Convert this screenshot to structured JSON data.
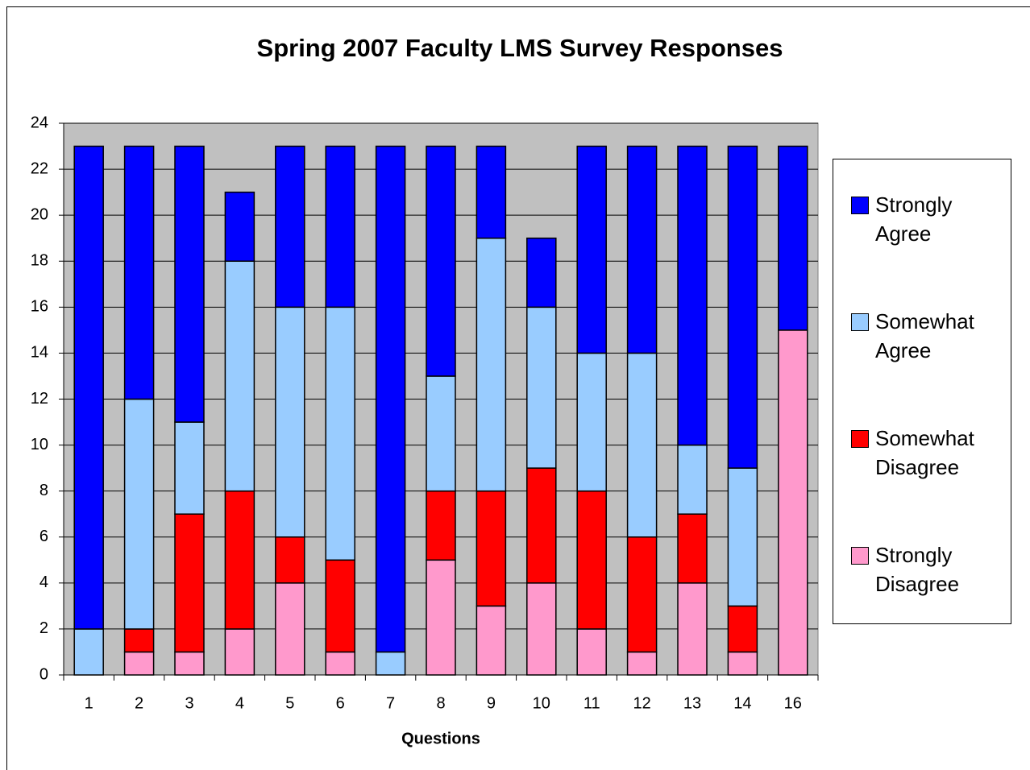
{
  "chart_data": {
    "type": "stacked_bar",
    "title": "Spring 2007 Faculty LMS Survey Responses",
    "x_label": "Questions",
    "categories": [
      "1",
      "2",
      "3",
      "4",
      "5",
      "6",
      "7",
      "8",
      "9",
      "10",
      "11",
      "12",
      "13",
      "14",
      "16"
    ],
    "series": [
      {
        "name": "Strongly Disagree",
        "color": "#ff99cc",
        "values": [
          0,
          1,
          1,
          2,
          4,
          1,
          0,
          5,
          3,
          4,
          2,
          1,
          4,
          1,
          15
        ]
      },
      {
        "name": "Somewhat Disagree",
        "color": "#ff0000",
        "values": [
          0,
          1,
          6,
          6,
          2,
          4,
          0,
          3,
          5,
          5,
          6,
          5,
          3,
          2,
          0
        ]
      },
      {
        "name": "Somewhat Agree",
        "color": "#99ccff",
        "values": [
          2,
          10,
          4,
          10,
          10,
          11,
          1,
          5,
          11,
          7,
          6,
          8,
          3,
          6,
          0
        ]
      },
      {
        "name": "Strongly Agree",
        "color": "#0000ff",
        "values": [
          21,
          11,
          12,
          3,
          7,
          7,
          22,
          10,
          4,
          3,
          9,
          9,
          13,
          14,
          8
        ]
      }
    ],
    "ylim": [
      0,
      24
    ],
    "yticks": [
      0,
      2,
      4,
      6,
      8,
      10,
      12,
      14,
      16,
      18,
      20,
      22,
      24
    ],
    "grid": true,
    "legend": "right"
  }
}
